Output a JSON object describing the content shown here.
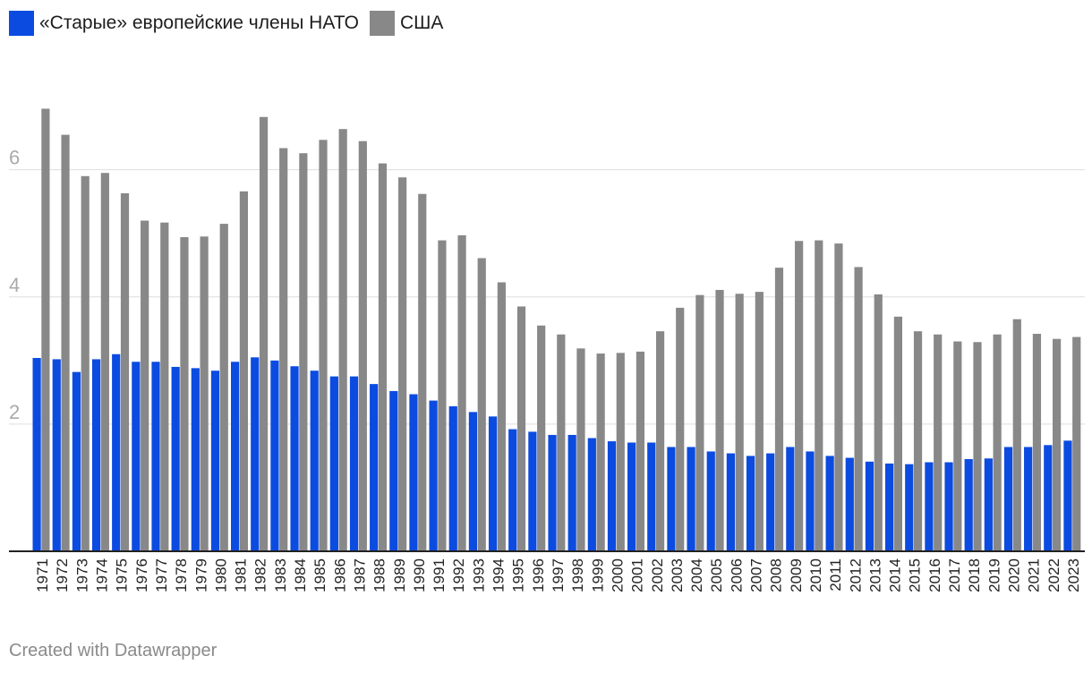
{
  "legend": {
    "series_a_label": "«Старые» европейские члены НАТО",
    "series_b_label": "США"
  },
  "footer": {
    "credit": "Created with Datawrapper"
  },
  "chart_data": {
    "type": "bar",
    "title": "",
    "xlabel": "",
    "ylabel": "",
    "ylim": [
      0,
      7.6
    ],
    "yticks": [
      2,
      4,
      6
    ],
    "grid": true,
    "legend_position": "top-left",
    "colors": {
      "series_a": "#0b4be0",
      "series_b": "#888888",
      "gridline": "#dddddd",
      "axis": "#222222",
      "tick_label": "#aaaaaa"
    },
    "categories": [
      "1971",
      "1972",
      "1973",
      "1974",
      "1975",
      "1976",
      "1977",
      "1978",
      "1979",
      "1980",
      "1981",
      "1982",
      "1983",
      "1984",
      "1985",
      "1986",
      "1987",
      "1988",
      "1989",
      "1990",
      "1991",
      "1992",
      "1993",
      "1994",
      "1995",
      "1996",
      "1997",
      "1998",
      "1999",
      "2000",
      "2001",
      "2002",
      "2003",
      "2004",
      "2005",
      "2006",
      "2007",
      "2008",
      "2009",
      "2010",
      "2011",
      "2012",
      "2013",
      "2014",
      "2015",
      "2016",
      "2017",
      "2018",
      "2019",
      "2020",
      "2021",
      "2022",
      "2023"
    ],
    "series": [
      {
        "name": "«Старые» европейские члены НАТО",
        "color": "#0b4be0",
        "values": [
          3.04,
          3.02,
          2.82,
          3.02,
          3.1,
          2.98,
          2.98,
          2.9,
          2.88,
          2.84,
          2.98,
          3.05,
          3.0,
          2.91,
          2.84,
          2.75,
          2.75,
          2.63,
          2.52,
          2.47,
          2.37,
          2.28,
          2.19,
          2.12,
          1.92,
          1.88,
          1.83,
          1.83,
          1.78,
          1.73,
          1.71,
          1.71,
          1.64,
          1.64,
          1.57,
          1.54,
          1.5,
          1.54,
          1.64,
          1.57,
          1.5,
          1.47,
          1.41,
          1.38,
          1.37,
          1.4,
          1.4,
          1.45,
          1.46,
          1.64,
          1.64,
          1.67,
          1.74
        ]
      },
      {
        "name": "США",
        "color": "#888888",
        "values": [
          6.96,
          6.55,
          5.9,
          5.95,
          5.63,
          5.2,
          5.17,
          4.94,
          4.95,
          5.15,
          5.66,
          6.83,
          6.34,
          6.26,
          6.47,
          6.64,
          6.45,
          6.1,
          5.88,
          5.62,
          4.89,
          4.97,
          4.61,
          4.23,
          3.85,
          3.55,
          3.41,
          3.19,
          3.11,
          3.12,
          3.14,
          3.46,
          3.83,
          4.03,
          4.11,
          4.05,
          4.08,
          4.46,
          4.88,
          4.89,
          4.84,
          4.47,
          4.04,
          3.69,
          3.46,
          3.41,
          3.3,
          3.29,
          3.41,
          3.65,
          3.42,
          3.34,
          3.37
        ]
      }
    ]
  }
}
